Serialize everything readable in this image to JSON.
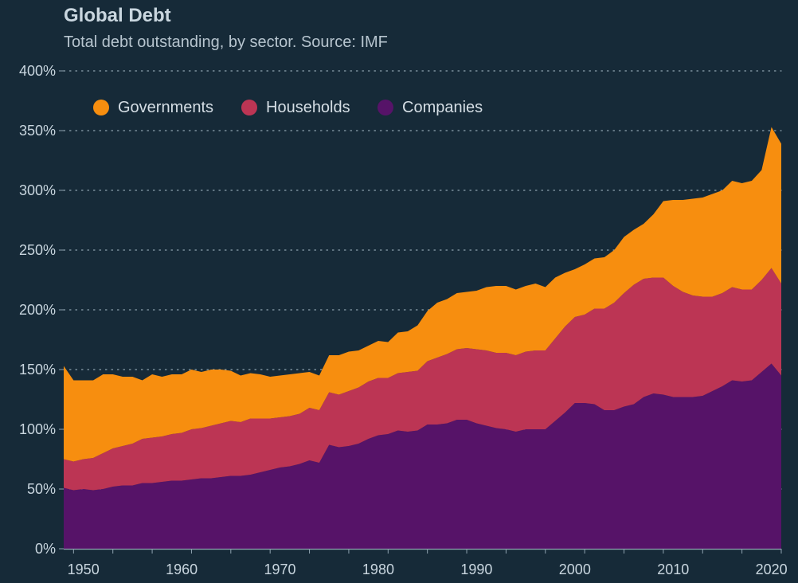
{
  "chart_data": {
    "type": "area",
    "stacked": true,
    "title": "Global Debt",
    "subtitle": "Total debt outstanding, by sector. Source: IMF",
    "xlabel": "",
    "ylabel": "",
    "xlim": [
      1948,
      2021
    ],
    "ylim": [
      0,
      400
    ],
    "y_unit": "%",
    "x_ticks": [
      "1950",
      "1960",
      "1970",
      "1980",
      "1990",
      "2000",
      "2010",
      "2020"
    ],
    "y_ticks": [
      "0%",
      "50%",
      "100%",
      "150%",
      "200%",
      "250%",
      "300%",
      "350%",
      "400%"
    ],
    "grid": "horizontal dotted",
    "legend_position": "top-left",
    "x": [
      1948,
      1949,
      1950,
      1951,
      1952,
      1953,
      1954,
      1955,
      1956,
      1957,
      1958,
      1959,
      1960,
      1961,
      1962,
      1963,
      1964,
      1965,
      1966,
      1967,
      1968,
      1969,
      1970,
      1971,
      1972,
      1973,
      1974,
      1975,
      1976,
      1977,
      1978,
      1979,
      1980,
      1981,
      1982,
      1983,
      1984,
      1985,
      1986,
      1987,
      1988,
      1989,
      1990,
      1991,
      1992,
      1993,
      1994,
      1995,
      1996,
      1997,
      1998,
      1999,
      2000,
      2001,
      2002,
      2003,
      2004,
      2005,
      2006,
      2007,
      2008,
      2009,
      2010,
      2011,
      2012,
      2013,
      2014,
      2015,
      2016,
      2017,
      2018,
      2019,
      2020,
      2021
    ],
    "series": [
      {
        "name": "Companies",
        "color": "#561368",
        "values": [
          51,
          49,
          50,
          49,
          50,
          52,
          53,
          53,
          55,
          55,
          56,
          57,
          57,
          58,
          59,
          59,
          60,
          61,
          61,
          62,
          64,
          66,
          68,
          69,
          71,
          74,
          72,
          87,
          85,
          86,
          88,
          92,
          95,
          96,
          99,
          98,
          99,
          104,
          104,
          105,
          108,
          108,
          105,
          103,
          101,
          100,
          98,
          100,
          100,
          100,
          107,
          114,
          122,
          122,
          121,
          116,
          116,
          119,
          121,
          127,
          130,
          129,
          127,
          127,
          127,
          128,
          132,
          136,
          141,
          140,
          141,
          148,
          155,
          145
        ]
      },
      {
        "name": "Households",
        "color": "#bc3554",
        "values": [
          24,
          24,
          25,
          27,
          30,
          32,
          33,
          35,
          37,
          38,
          38,
          39,
          40,
          42,
          42,
          44,
          45,
          46,
          45,
          47,
          45,
          43,
          42,
          42,
          42,
          44,
          44,
          44,
          44,
          46,
          47,
          48,
          48,
          47,
          48,
          50,
          50,
          53,
          56,
          58,
          59,
          60,
          62,
          63,
          63,
          64,
          64,
          65,
          66,
          66,
          69,
          72,
          72,
          74,
          80,
          85,
          90,
          95,
          100,
          99,
          97,
          98,
          93,
          88,
          85,
          83,
          79,
          78,
          78,
          77,
          76,
          77,
          80,
          77
        ]
      },
      {
        "name": "Governments",
        "color": "#f78e0f",
        "values": [
          78,
          68,
          66,
          65,
          66,
          62,
          58,
          56,
          49,
          53,
          50,
          50,
          49,
          50,
          47,
          47,
          45,
          42,
          39,
          38,
          37,
          35,
          35,
          35,
          34,
          30,
          29,
          31,
          33,
          33,
          31,
          30,
          31,
          30,
          34,
          34,
          38,
          42,
          46,
          46,
          47,
          47,
          49,
          53,
          56,
          56,
          55,
          55,
          56,
          53,
          51,
          45,
          40,
          42,
          42,
          43,
          44,
          47,
          46,
          46,
          53,
          64,
          72,
          77,
          81,
          83,
          86,
          86,
          89,
          89,
          91,
          92,
          118,
          117
        ]
      }
    ],
    "legend": [
      "Governments",
      "Households",
      "Companies"
    ]
  }
}
